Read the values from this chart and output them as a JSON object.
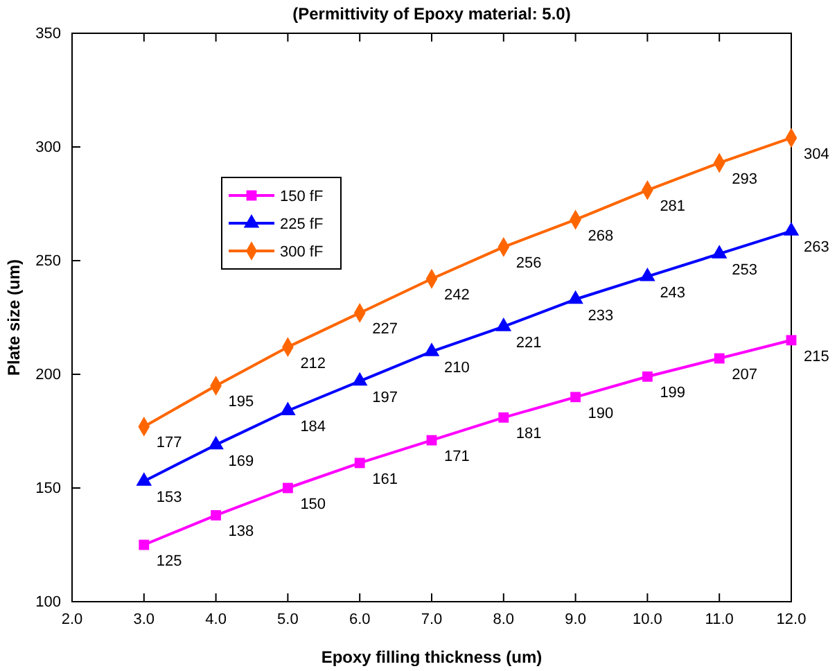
{
  "chart_data": {
    "type": "line",
    "title": "(Permittivity of Epoxy material: 5.0)",
    "xlabel": "Epoxy filling thickness (um)",
    "ylabel": "Plate size (um)",
    "x": [
      3,
      4,
      5,
      6,
      7,
      8,
      9,
      10,
      11,
      12
    ],
    "series": [
      {
        "name": "150 fF",
        "color": "#ff00ff",
        "marker": "square",
        "values": [
          125,
          138,
          150,
          161,
          171,
          181,
          190,
          199,
          207,
          215
        ]
      },
      {
        "name": "225 fF",
        "color": "#0000ff",
        "marker": "triangle",
        "values": [
          153,
          169,
          184,
          197,
          210,
          221,
          233,
          243,
          253,
          263
        ]
      },
      {
        "name": "300 fF",
        "color": "#ff6600",
        "marker": "diamond",
        "values": [
          177,
          195,
          212,
          227,
          242,
          256,
          268,
          281,
          293,
          304
        ]
      }
    ],
    "xlim": [
      2,
      12
    ],
    "xticks": [
      {
        "value": 2,
        "label": "2.0"
      },
      {
        "value": 3,
        "label": "3.0"
      },
      {
        "value": 4,
        "label": "4.0"
      },
      {
        "value": 5,
        "label": "5.0"
      },
      {
        "value": 6,
        "label": "6.0"
      },
      {
        "value": 7,
        "label": "7.0"
      },
      {
        "value": 8,
        "label": "8.0"
      },
      {
        "value": 9,
        "label": "9.0"
      },
      {
        "value": 10,
        "label": "10.0"
      },
      {
        "value": 11,
        "label": "11.0"
      },
      {
        "value": 12,
        "label": "12.0"
      }
    ],
    "ylim": [
      100,
      350
    ],
    "yticks": [
      100,
      150,
      200,
      250,
      300,
      350
    ],
    "data_labels": true,
    "legend": "top left",
    "grid": false
  }
}
